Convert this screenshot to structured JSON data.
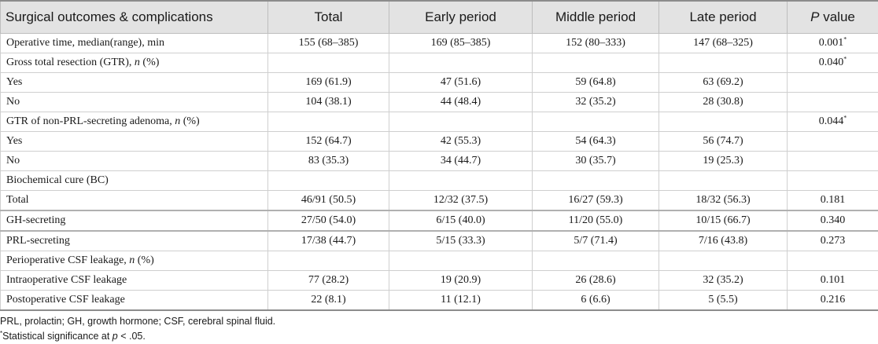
{
  "table": {
    "headers": [
      "Surgical outcomes & complications",
      "Total",
      "Early period",
      "Middle period",
      "Late period",
      "P value"
    ],
    "rows": [
      {
        "label": "Operative time, median(range), min",
        "cells": [
          "155 (68–385)",
          "169 (85–385)",
          "152 (80–333)",
          "147 (68–325)",
          "0.001"
        ],
        "sig": "*"
      },
      {
        "label_pre": "Gross total resection (GTR), ",
        "label_ital": "n",
        "label_post": " (%)",
        "cells": [
          "",
          "",
          "",
          "",
          "0.040"
        ],
        "sig": "*"
      },
      {
        "label": "Yes",
        "cells": [
          "169 (61.9)",
          "47 (51.6)",
          "59 (64.8)",
          "63 (69.2)",
          ""
        ]
      },
      {
        "label": "No",
        "cells": [
          "104 (38.1)",
          "44 (48.4)",
          "32 (35.2)",
          "28 (30.8)",
          ""
        ]
      },
      {
        "label_pre": "GTR of non-PRL-secreting adenoma, ",
        "label_ital": "n",
        "label_post": " (%)",
        "cells": [
          "",
          "",
          "",
          "",
          "0.044"
        ],
        "sig": "*"
      },
      {
        "label": "Yes",
        "cells": [
          "152 (64.7)",
          "42 (55.3)",
          "54 (64.3)",
          "56 (74.7)",
          ""
        ]
      },
      {
        "label": "No",
        "cells": [
          "83 (35.3)",
          "34 (44.7)",
          "30 (35.7)",
          "19 (25.3)",
          ""
        ]
      },
      {
        "label": "Biochemical cure (BC)",
        "cells": [
          "",
          "",
          "",
          "",
          ""
        ]
      },
      {
        "label": "Total",
        "cells": [
          "46/91 (50.5)",
          "12/32 (37.5)",
          "16/27 (59.3)",
          "18/32 (56.3)",
          "0.181"
        ]
      },
      {
        "label": "GH-secreting",
        "cells": [
          "27/50 (54.0)",
          "6/15 (40.0)",
          "11/20 (55.0)",
          "10/15 (66.7)",
          "0.340"
        ]
      },
      {
        "label": "PRL-secreting",
        "cells": [
          "17/38 (44.7)",
          "5/15 (33.3)",
          "5/7 (71.4)",
          "7/16 (43.8)",
          "0.273"
        ]
      },
      {
        "label_pre": "Perioperative CSF leakage, ",
        "label_ital": "n",
        "label_post": " (%)",
        "cells": [
          "",
          "",
          "",
          "",
          ""
        ]
      },
      {
        "label": "Intraoperative CSF leakage",
        "cells": [
          "77 (28.2)",
          "19 (20.9)",
          "26 (28.6)",
          "32 (35.2)",
          "0.101"
        ]
      },
      {
        "label": "Postoperative CSF leakage",
        "cells": [
          "22 (8.1)",
          "11 (12.1)",
          "6 (6.6)",
          "5 (5.5)",
          "0.216"
        ]
      }
    ]
  },
  "notes": {
    "abbreviations": "PRL, prolactin; GH, growth hormone; CSF, cerebral spinal fluid.",
    "sig_marker": "*",
    "sig_text": "Statistical significance at ",
    "sig_p": "p",
    "sig_tail": " < .05."
  }
}
